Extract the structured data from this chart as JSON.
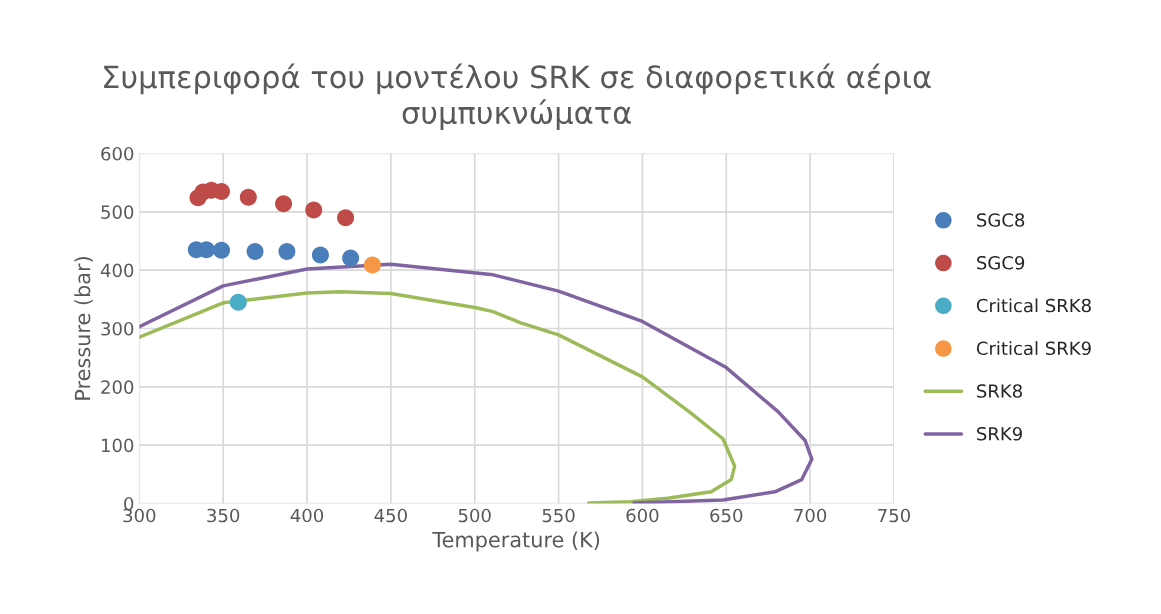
{
  "chart_data": {
    "type": "scatter",
    "title": "Συμπεριφορά του μοντέλου SRK σε διαφορετικά αέρια συμπυκνώματα",
    "xlabel": "Temperature (K)",
    "ylabel": "Pressure (bar)",
    "xlim": [
      300,
      750
    ],
    "xticks": [
      300,
      350,
      400,
      450,
      500,
      550,
      600,
      650,
      700,
      750
    ],
    "ylim": [
      0,
      600
    ],
    "yticks": [
      0,
      100,
      200,
      300,
      400,
      500,
      600
    ],
    "grid": true,
    "legend": "right",
    "series": [
      {
        "name": "SGC8",
        "marker": "circle",
        "color": "#4a7ebb",
        "x": [
          334,
          340,
          349,
          369,
          388,
          408,
          426
        ],
        "values": [
          435,
          435,
          434,
          432,
          432,
          426,
          421
        ]
      },
      {
        "name": "SGC9",
        "marker": "circle",
        "color": "#be4b48",
        "x": [
          335,
          338,
          343,
          349,
          365,
          386,
          404,
          423
        ],
        "values": [
          524,
          534,
          537,
          535,
          525,
          514,
          503,
          490
        ]
      },
      {
        "name": "Critical SRK8",
        "marker": "circle",
        "color": "#4bacc6",
        "x": [
          359
        ],
        "values": [
          345
        ]
      },
      {
        "name": "Critical SRK9",
        "marker": "circle",
        "color": "#f79646",
        "x": [
          439
        ],
        "values": [
          409
        ]
      },
      {
        "name": "SRK8",
        "type": "line",
        "color": "#9bbb59",
        "x": [
          300,
          350,
          400,
          420,
          450,
          500,
          511,
          527,
          550,
          600,
          628,
          648,
          655,
          653,
          641,
          615,
          593,
          568
        ],
        "values": [
          285,
          344,
          361,
          363,
          360,
          336,
          329,
          310,
          289,
          217,
          157,
          111,
          64,
          41,
          20,
          9,
          3,
          1
        ]
      },
      {
        "name": "SRK9",
        "type": "line",
        "color": "#8064a2",
        "x": [
          300,
          350,
          400,
          450,
          511,
          550,
          600,
          650,
          681,
          697,
          701,
          695,
          679,
          648,
          595
        ],
        "values": [
          303,
          373,
          402,
          410,
          392,
          364,
          312,
          233,
          157,
          108,
          76,
          41,
          20,
          6,
          1
        ]
      }
    ]
  }
}
